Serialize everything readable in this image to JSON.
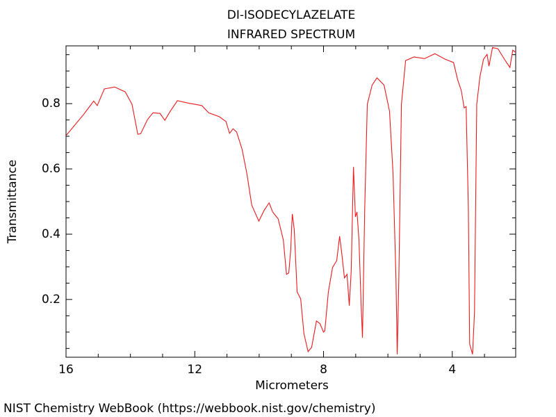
{
  "chart_data": {
    "type": "line",
    "title": "DI-ISODECYLAZELATE",
    "subtitle": "INFRARED SPECTRUM",
    "x_label": "Micrometers",
    "y_label": "Transmittance",
    "source": "NIST Chemistry WebBook (https://webbook.nist.gov/chemistry)",
    "color": "#e8191c",
    "xlim": [
      16,
      2.03
    ],
    "ylim": [
      0.023,
      0.977
    ],
    "xticks": [
      16,
      12,
      8,
      4
    ],
    "yticks": [
      0.2,
      0.4,
      0.6,
      0.8
    ],
    "xminorticks": [
      15,
      14,
      13,
      11,
      10,
      9,
      7,
      6,
      5,
      3
    ],
    "yminorticks": [
      0.05,
      0.1,
      0.15,
      0.25,
      0.3,
      0.35,
      0.45,
      0.5,
      0.55,
      0.65,
      0.7,
      0.75,
      0.85,
      0.9,
      0.95
    ],
    "x": [
      16,
      15.46,
      15.14,
      15.03,
      14.81,
      14.49,
      14.16,
      13.95,
      13.77,
      13.68,
      13.47,
      13.3,
      13.08,
      12.93,
      12.76,
      12.54,
      12.22,
      11.78,
      11.57,
      11.24,
      11.03,
      10.92,
      10.81,
      10.7,
      10.53,
      10.38,
      10.23,
      10.01,
      9.84,
      9.69,
      9.58,
      9.41,
      9.25,
      9.15,
      9.08,
      9.02,
      8.97,
      8.91,
      8.82,
      8.71,
      8.61,
      8.48,
      8.37,
      8.22,
      8.11,
      8.0,
      7.96,
      7.85,
      7.72,
      7.59,
      7.5,
      7.44,
      7.35,
      7.27,
      7.2,
      7.14,
      7.07,
      7.01,
      6.96,
      6.9,
      6.83,
      6.79,
      6.72,
      6.64,
      6.49,
      6.34,
      6.12,
      5.95,
      5.84,
      5.75,
      5.71,
      5.66,
      5.58,
      5.45,
      5.19,
      4.86,
      4.54,
      4.22,
      3.96,
      3.83,
      3.72,
      3.63,
      3.57,
      3.5,
      3.46,
      3.37,
      3.31,
      3.24,
      3.14,
      3.03,
      2.92,
      2.86,
      2.75,
      2.58,
      2.38,
      2.21,
      2.12,
      2.03
    ],
    "values": [
      0.702,
      0.766,
      0.808,
      0.794,
      0.845,
      0.851,
      0.836,
      0.798,
      0.706,
      0.708,
      0.751,
      0.772,
      0.77,
      0.749,
      0.777,
      0.809,
      0.802,
      0.794,
      0.772,
      0.76,
      0.745,
      0.709,
      0.723,
      0.713,
      0.66,
      0.585,
      0.489,
      0.44,
      0.474,
      0.496,
      0.468,
      0.447,
      0.383,
      0.277,
      0.281,
      0.351,
      0.462,
      0.415,
      0.223,
      0.202,
      0.096,
      0.04,
      0.053,
      0.134,
      0.126,
      0.1,
      0.104,
      0.223,
      0.298,
      0.319,
      0.394,
      0.347,
      0.266,
      0.277,
      0.181,
      0.287,
      0.606,
      0.453,
      0.468,
      0.383,
      0.181,
      0.083,
      0.479,
      0.798,
      0.857,
      0.879,
      0.857,
      0.777,
      0.585,
      0.266,
      0.032,
      0.266,
      0.798,
      0.932,
      0.943,
      0.938,
      0.953,
      0.936,
      0.926,
      0.872,
      0.84,
      0.787,
      0.791,
      0.479,
      0.064,
      0.032,
      0.16,
      0.798,
      0.883,
      0.936,
      0.951,
      0.915,
      0.972,
      0.968,
      0.936,
      0.911,
      0.964,
      0.957
    ]
  }
}
